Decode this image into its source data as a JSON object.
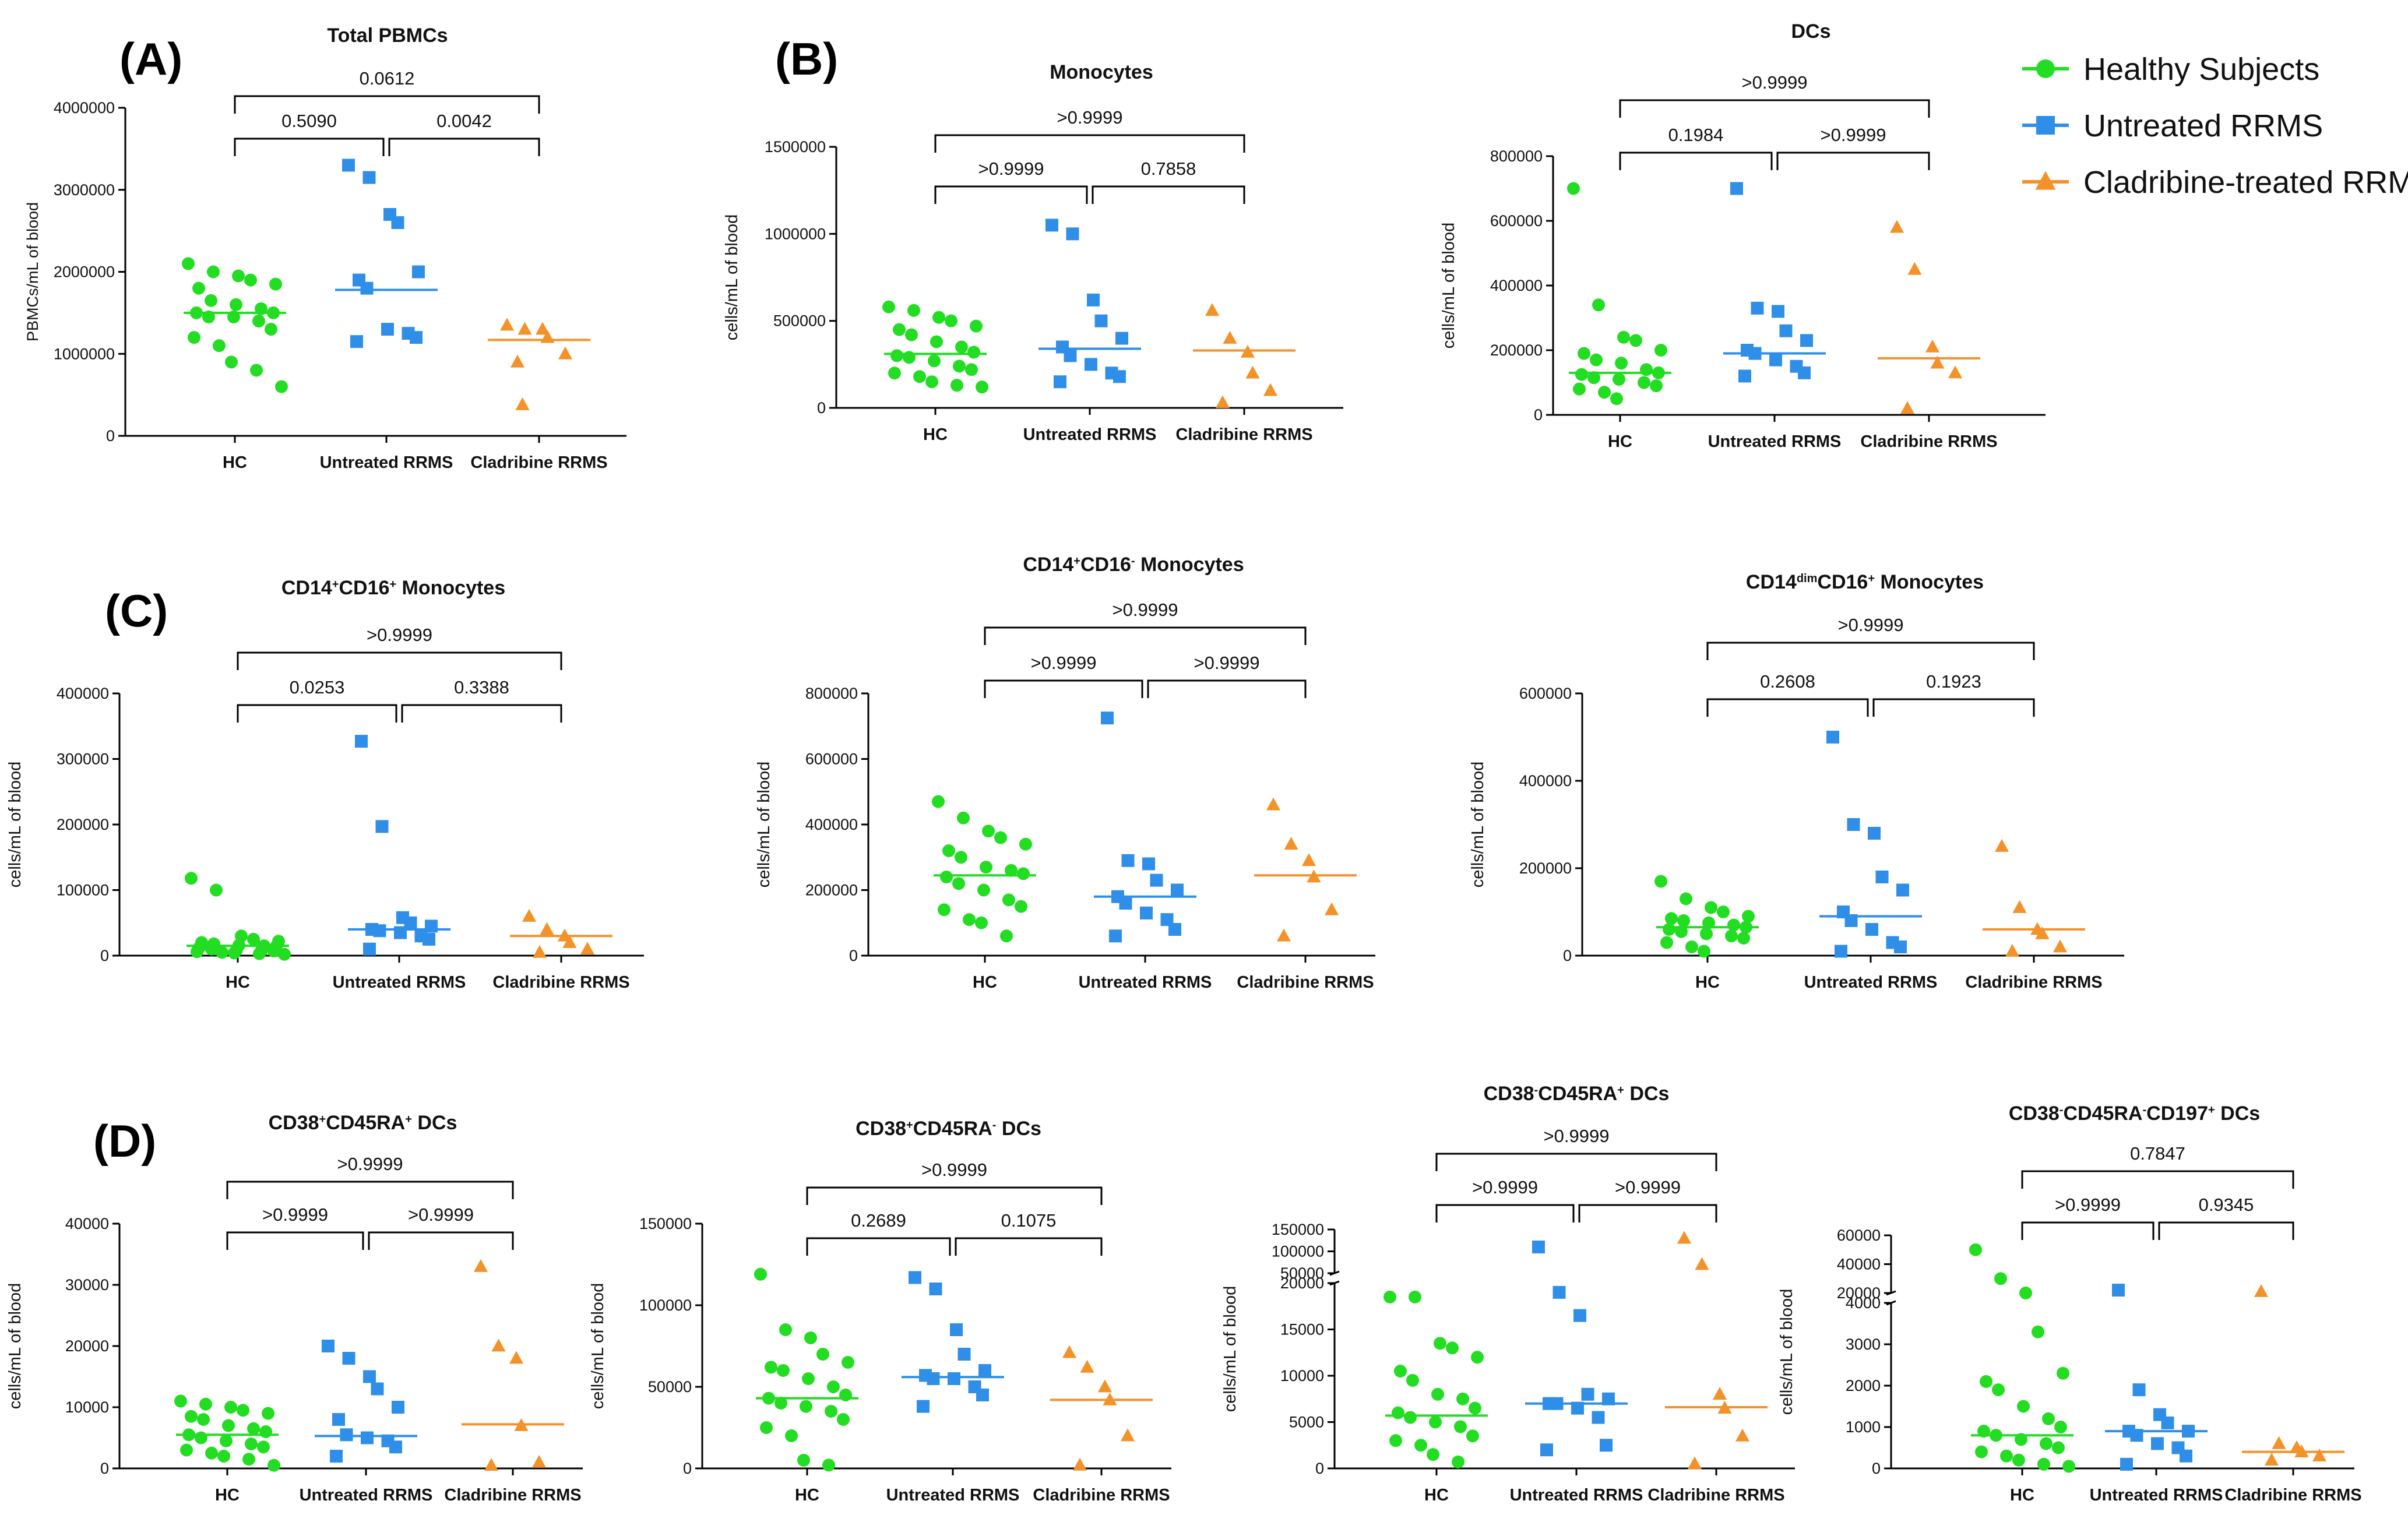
{
  "colors": {
    "hc": "#22dd22",
    "untreated": "#2f8fe8",
    "cladribine": "#f4922a",
    "axis": "#000000"
  },
  "legend": {
    "position": "top-right",
    "entries": [
      {
        "label": "Healthy Subjects",
        "marker": "circle",
        "color": "#22dd22"
      },
      {
        "label": "Untreated RRMS",
        "marker": "square",
        "color": "#2f8fe8"
      },
      {
        "label": "Cladribine-treated RRMS",
        "marker": "triangle",
        "color": "#f4922a"
      }
    ]
  },
  "panel_labels": [
    "(A)",
    "(B)",
    "(C)",
    "(D)"
  ],
  "chart_data": [
    {
      "id": "A",
      "type": "scatter",
      "title": "Total PBMCs",
      "ylabel": "PBMCs/mL of blood",
      "categories": [
        "HC",
        "Untreated RRMS",
        "Cladribine RRMS"
      ],
      "ylim": [
        0,
        4000000
      ],
      "yticks": [
        0,
        1000000,
        2000000,
        3000000,
        4000000
      ],
      "medians": [
        1500000,
        1780000,
        1170000
      ],
      "pvalues": {
        "hc_vs_untreated": "0.5090",
        "untreated_vs_cladribine": "0.0042",
        "hc_vs_cladribine": "0.0612"
      },
      "series": [
        {
          "name": "HC",
          "values": [
            2100000,
            2000000,
            1950000,
            1900000,
            1850000,
            1800000,
            1650000,
            1600000,
            1550000,
            1500000,
            1500000,
            1450000,
            1450000,
            1400000,
            1300000,
            1200000,
            1100000,
            900000,
            800000,
            600000
          ]
        },
        {
          "name": "Untreated RRMS",
          "values": [
            3300000,
            3150000,
            2700000,
            2600000,
            2000000,
            1900000,
            1800000,
            1300000,
            1250000,
            1200000,
            1150000
          ]
        },
        {
          "name": "Cladribine RRMS",
          "values": [
            1350000,
            1300000,
            1300000,
            1200000,
            1000000,
            900000,
            380000
          ]
        }
      ]
    },
    {
      "id": "B1",
      "type": "scatter",
      "title": "Monocytes",
      "ylabel": "cells/mL of blood",
      "categories": [
        "HC",
        "Untreated RRMS",
        "Cladribine RRMS"
      ],
      "ylim": [
        0,
        1500000
      ],
      "yticks": [
        0,
        500000,
        1000000,
        1500000
      ],
      "medians": [
        310000,
        340000,
        330000
      ],
      "pvalues": {
        "hc_vs_untreated": ">0.9999",
        "untreated_vs_cladribine": "0.7858",
        "hc_vs_cladribine": ">0.9999"
      },
      "series": [
        {
          "name": "HC",
          "values": [
            580000,
            560000,
            520000,
            500000,
            470000,
            450000,
            420000,
            380000,
            350000,
            320000,
            300000,
            290000,
            270000,
            240000,
            220000,
            200000,
            180000,
            150000,
            130000,
            120000
          ]
        },
        {
          "name": "Untreated RRMS",
          "values": [
            1050000,
            1000000,
            620000,
            500000,
            400000,
            350000,
            300000,
            250000,
            200000,
            180000,
            150000
          ]
        },
        {
          "name": "Cladribine RRMS",
          "values": [
            560000,
            400000,
            320000,
            200000,
            100000,
            30000
          ]
        }
      ]
    },
    {
      "id": "B2",
      "type": "scatter",
      "title": "DCs",
      "ylabel": "cells/mL of blood",
      "categories": [
        "HC",
        "Untreated RRMS",
        "Cladribine RRMS"
      ],
      "ylim": [
        0,
        800000
      ],
      "yticks": [
        0,
        200000,
        400000,
        600000,
        800000
      ],
      "medians": [
        130000,
        190000,
        175000
      ],
      "pvalues": {
        "hc_vs_untreated": "0.1984",
        "untreated_vs_cladribine": ">0.9999",
        "hc_vs_cladribine": ">0.9999"
      },
      "series": [
        {
          "name": "HC",
          "values": [
            700000,
            340000,
            240000,
            230000,
            200000,
            190000,
            170000,
            160000,
            140000,
            130000,
            125000,
            115000,
            110000,
            100000,
            90000,
            80000,
            70000,
            50000
          ]
        },
        {
          "name": "Untreated RRMS",
          "values": [
            700000,
            330000,
            320000,
            260000,
            230000,
            200000,
            190000,
            170000,
            150000,
            130000,
            120000
          ]
        },
        {
          "name": "Cladribine RRMS",
          "values": [
            580000,
            450000,
            210000,
            160000,
            130000,
            20000
          ]
        }
      ]
    },
    {
      "id": "C1",
      "type": "scatter",
      "title": "CD14⁺CD16⁺ Monocytes",
      "ylabel": "cells/mL of blood",
      "categories": [
        "HC",
        "Untreated RRMS",
        "Cladribine RRMS"
      ],
      "ylim": [
        0,
        400000
      ],
      "yticks": [
        0,
        100000,
        200000,
        300000,
        400000
      ],
      "medians": [
        15000,
        40000,
        30000
      ],
      "pvalues": {
        "hc_vs_untreated": "0.0253",
        "untreated_vs_cladribine": "0.3388",
        "hc_vs_cladribine": ">0.9999"
      },
      "series": [
        {
          "name": "HC",
          "values": [
            118000,
            100000,
            30000,
            25000,
            22000,
            20000,
            18000,
            16000,
            15000,
            14000,
            12000,
            10000,
            9000,
            8000,
            7000,
            6000,
            5000,
            4000,
            3000,
            2000
          ]
        },
        {
          "name": "Untreated RRMS",
          "values": [
            327000,
            197000,
            58000,
            50000,
            45000,
            40000,
            38000,
            35000,
            30000,
            25000,
            10000
          ]
        },
        {
          "name": "Cladribine RRMS",
          "values": [
            60000,
            40000,
            30000,
            20000,
            10000,
            5000
          ]
        }
      ]
    },
    {
      "id": "C2",
      "type": "scatter",
      "title": "CD14⁺CD16⁻ Monocytes",
      "ylabel": "cells/mL of blood",
      "categories": [
        "HC",
        "Untreated RRMS",
        "Cladribine RRMS"
      ],
      "ylim": [
        0,
        800000
      ],
      "yticks": [
        0,
        200000,
        400000,
        600000,
        800000
      ],
      "medians": [
        245000,
        180000,
        245000
      ],
      "pvalues": {
        "hc_vs_untreated": ">0.9999",
        "untreated_vs_cladribine": ">0.9999",
        "hc_vs_cladribine": ">0.9999"
      },
      "series": [
        {
          "name": "HC",
          "values": [
            470000,
            420000,
            380000,
            360000,
            340000,
            320000,
            300000,
            270000,
            260000,
            250000,
            240000,
            220000,
            200000,
            170000,
            150000,
            140000,
            110000,
            100000,
            60000
          ]
        },
        {
          "name": "Untreated RRMS",
          "values": [
            725000,
            290000,
            280000,
            230000,
            200000,
            180000,
            160000,
            130000,
            110000,
            80000,
            60000
          ]
        },
        {
          "name": "Cladribine RRMS",
          "values": [
            460000,
            340000,
            290000,
            240000,
            140000,
            60000
          ]
        }
      ]
    },
    {
      "id": "C3",
      "type": "scatter",
      "title": "CD14ᵈⁱᵐCD16⁺ Monocytes",
      "ylabel": "cells/mL of blood",
      "categories": [
        "HC",
        "Untreated RRMS",
        "Cladribine RRMS"
      ],
      "ylim": [
        0,
        600000
      ],
      "yticks": [
        0,
        200000,
        400000,
        600000
      ],
      "medians": [
        65000,
        90000,
        60000
      ],
      "pvalues": {
        "hc_vs_untreated": "0.2608",
        "untreated_vs_cladribine": "0.1923",
        "hc_vs_cladribine": ">0.9999"
      },
      "series": [
        {
          "name": "HC",
          "values": [
            170000,
            130000,
            110000,
            100000,
            90000,
            85000,
            80000,
            75000,
            70000,
            65000,
            60000,
            55000,
            50000,
            45000,
            40000,
            30000,
            20000,
            10000
          ]
        },
        {
          "name": "Untreated RRMS",
          "values": [
            500000,
            300000,
            280000,
            180000,
            150000,
            100000,
            80000,
            60000,
            30000,
            20000,
            10000
          ]
        },
        {
          "name": "Cladribine RRMS",
          "values": [
            250000,
            110000,
            60000,
            50000,
            20000,
            10000
          ]
        }
      ]
    },
    {
      "id": "D1",
      "type": "scatter",
      "title": "CD38⁺CD45RA⁺ DCs",
      "ylabel": "cells/mL of blood",
      "categories": [
        "HC",
        "Untreated RRMS",
        "Cladribine RRMS"
      ],
      "ylim": [
        0,
        40000
      ],
      "yticks": [
        0,
        10000,
        20000,
        30000,
        40000
      ],
      "medians": [
        5500,
        5300,
        7200
      ],
      "pvalues": {
        "hc_vs_untreated": ">0.9999",
        "untreated_vs_cladribine": ">0.9999",
        "hc_vs_cladribine": ">0.9999"
      },
      "series": [
        {
          "name": "HC",
          "values": [
            11000,
            10500,
            10000,
            9500,
            9000,
            8500,
            8000,
            7000,
            6500,
            6000,
            5500,
            5000,
            4500,
            4000,
            3500,
            3000,
            2500,
            2000,
            1500,
            500
          ]
        },
        {
          "name": "Untreated RRMS",
          "values": [
            20000,
            18000,
            15000,
            13000,
            10000,
            8000,
            5500,
            5000,
            4500,
            3500,
            2000
          ]
        },
        {
          "name": "Cladribine RRMS",
          "values": [
            33000,
            20000,
            18000,
            7000,
            1000,
            500
          ]
        }
      ]
    },
    {
      "id": "D2",
      "type": "scatter",
      "title": "CD38⁺CD45RA⁻ DCs",
      "ylabel": "cells/mL of blood",
      "categories": [
        "HC",
        "Untreated RRMS",
        "Cladribine RRMS"
      ],
      "ylim": [
        0,
        150000
      ],
      "yticks": [
        0,
        50000,
        100000,
        150000
      ],
      "medians": [
        43000,
        56000,
        42000
      ],
      "pvalues": {
        "hc_vs_untreated": "0.2689",
        "untreated_vs_cladribine": "0.1075",
        "hc_vs_cladribine": ">0.9999"
      },
      "series": [
        {
          "name": "HC",
          "values": [
            119000,
            85000,
            80000,
            70000,
            65000,
            62000,
            60000,
            55000,
            50000,
            45000,
            43000,
            40000,
            38000,
            35000,
            30000,
            25000,
            20000,
            5000,
            2000
          ]
        },
        {
          "name": "Untreated RRMS",
          "values": [
            117000,
            110000,
            85000,
            70000,
            60000,
            57000,
            55000,
            55000,
            50000,
            45000,
            38000
          ]
        },
        {
          "name": "Cladribine RRMS",
          "values": [
            71000,
            62000,
            50000,
            42000,
            20000,
            2000
          ]
        }
      ]
    },
    {
      "id": "D3",
      "type": "scatter",
      "title": "CD38⁻CD45RA⁺ DCs",
      "ylabel": "cells/mL of blood",
      "categories": [
        "HC",
        "Untreated RRMS",
        "Cladribine RRMS"
      ],
      "ylim": [
        0,
        150000
      ],
      "yticks": [
        0,
        5000,
        10000,
        15000,
        20000,
        50000,
        100000,
        150000
      ],
      "y_axis_break": {
        "lower": [
          0,
          20000
        ],
        "upper": [
          50000,
          150000
        ]
      },
      "medians": [
        5700,
        7000,
        6600
      ],
      "pvalues": {
        "hc_vs_untreated": ">0.9999",
        "untreated_vs_cladribine": ">0.9999",
        "hc_vs_cladribine": ">0.9999"
      },
      "series": [
        {
          "name": "HC",
          "values": [
            18500,
            18500,
            13500,
            13000,
            12000,
            10500,
            9500,
            8000,
            7500,
            6500,
            6000,
            5500,
            5000,
            4500,
            3500,
            3000,
            2500,
            1500,
            700
          ]
        },
        {
          "name": "Untreated RRMS",
          "values": [
            110000,
            19000,
            16500,
            8000,
            7500,
            7000,
            7000,
            6500,
            5500,
            2500,
            2000
          ]
        },
        {
          "name": "Cladribine RRMS",
          "values": [
            130000,
            70000,
            8000,
            6500,
            3500,
            500
          ]
        }
      ]
    },
    {
      "id": "D4",
      "type": "scatter",
      "title": "CD38⁻CD45RA⁻CD197⁺ DCs",
      "ylabel": "cells/mL of blood",
      "categories": [
        "HC",
        "Untreated RRMS",
        "Cladribine RRMS"
      ],
      "ylim": [
        0,
        60000
      ],
      "yticks": [
        0,
        1000,
        2000,
        3000,
        4000,
        20000,
        40000,
        60000
      ],
      "y_axis_break": {
        "lower": [
          0,
          4000
        ],
        "upper": [
          20000,
          60000
        ]
      },
      "medians": [
        800,
        900,
        400
      ],
      "pvalues": {
        "hc_vs_untreated": ">0.9999",
        "untreated_vs_cladribine": "0.9345",
        "hc_vs_cladribine": "0.7847"
      },
      "series": [
        {
          "name": "HC",
          "values": [
            50000,
            30000,
            20000,
            3300,
            2300,
            2100,
            1900,
            1500,
            1200,
            1000,
            900,
            800,
            700,
            600,
            500,
            400,
            300,
            200,
            100,
            50
          ]
        },
        {
          "name": "Untreated RRMS",
          "values": [
            22000,
            1900,
            1300,
            1100,
            900,
            900,
            800,
            600,
            500,
            300,
            100
          ]
        },
        {
          "name": "Cladribine RRMS",
          "values": [
            21000,
            600,
            500,
            400,
            300,
            200
          ]
        }
      ]
    }
  ]
}
